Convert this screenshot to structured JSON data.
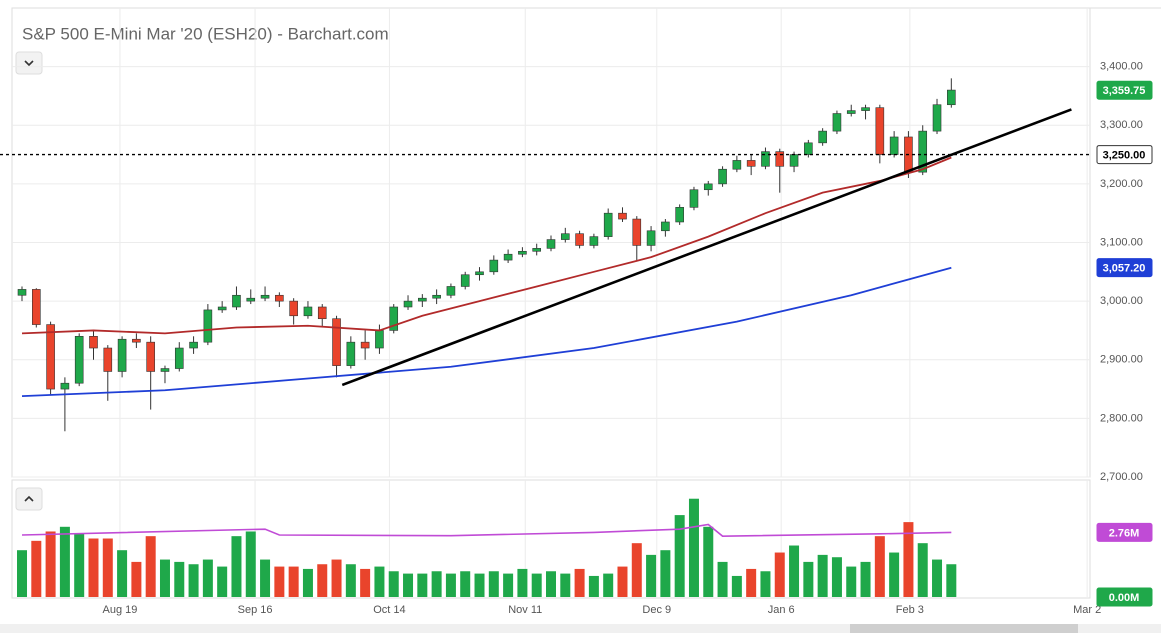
{
  "chart_data": {
    "type": "candlestick",
    "title": "S&P 500 E-Mini Mar '20 (ESH20) - Barchart.com",
    "up_color": "#1fa84a",
    "down_color": "#e9442c",
    "open": [
      3010,
      3020,
      2960,
      2850,
      2860,
      2940,
      2920,
      2880,
      2935,
      2930,
      2880,
      2885,
      2920,
      2930,
      2985,
      2990,
      3000,
      3005,
      3010,
      3000,
      2975,
      2990,
      2970,
      2890,
      2930,
      2920,
      2950,
      2990,
      3000,
      3005,
      3010,
      3025,
      3045,
      3050,
      3070,
      3080,
      3085,
      3090,
      3105,
      3115,
      3095,
      3110,
      3150,
      3140,
      3095,
      3120,
      3135,
      3160,
      3190,
      3200,
      3225,
      3240,
      3230,
      3255,
      3230,
      3250,
      3270,
      3290,
      3320,
      3325,
      3330,
      3250,
      3280,
      3220,
      3290,
      3335
    ],
    "high": [
      3025,
      3022,
      2965,
      2870,
      2945,
      2950,
      2925,
      2940,
      2945,
      2940,
      2890,
      2930,
      2940,
      2995,
      3000,
      3025,
      3020,
      3025,
      3015,
      3005,
      3000,
      2995,
      2975,
      2940,
      2950,
      2960,
      2995,
      3010,
      3012,
      3020,
      3030,
      3050,
      3058,
      3078,
      3088,
      3092,
      3098,
      3112,
      3125,
      3120,
      3115,
      3158,
      3160,
      3145,
      3128,
      3140,
      3165,
      3195,
      3205,
      3230,
      3248,
      3250,
      3262,
      3260,
      3255,
      3275,
      3295,
      3325,
      3335,
      3335,
      3335,
      3290,
      3290,
      3300,
      3345,
      3380
    ],
    "low": [
      3000,
      2955,
      2840,
      2778,
      2855,
      2900,
      2830,
      2870,
      2920,
      2815,
      2860,
      2880,
      2910,
      2925,
      2980,
      2985,
      2995,
      3000,
      2990,
      2960,
      2970,
      2955,
      2870,
      2885,
      2900,
      2910,
      2945,
      2985,
      2990,
      2995,
      3005,
      3020,
      3035,
      3045,
      3065,
      3075,
      3078,
      3085,
      3100,
      3090,
      3090,
      3105,
      3135,
      3070,
      3085,
      3110,
      3130,
      3155,
      3180,
      3195,
      3220,
      3215,
      3225,
      3185,
      3220,
      3245,
      3265,
      3285,
      3315,
      3310,
      3235,
      3245,
      3210,
      3215,
      3285,
      3330
    ],
    "close": [
      3020,
      2960,
      2850,
      2860,
      2940,
      2920,
      2880,
      2935,
      2930,
      2880,
      2885,
      2920,
      2930,
      2985,
      2990,
      3010,
      3005,
      3010,
      3000,
      2975,
      2990,
      2970,
      2890,
      2930,
      2920,
      2950,
      2990,
      3000,
      3005,
      3010,
      3025,
      3045,
      3050,
      3070,
      3080,
      3085,
      3090,
      3105,
      3115,
      3095,
      3110,
      3150,
      3140,
      3095,
      3120,
      3135,
      3160,
      3190,
      3200,
      3225,
      3240,
      3230,
      3255,
      3230,
      3250,
      3270,
      3290,
      3320,
      3325,
      3330,
      3250,
      3280,
      3220,
      3290,
      3335,
      3360
    ],
    "volume": [
      2.0,
      2.4,
      2.8,
      3.0,
      2.7,
      2.5,
      2.5,
      2.0,
      1.5,
      2.6,
      1.6,
      1.5,
      1.4,
      1.6,
      1.3,
      2.6,
      2.8,
      1.6,
      1.3,
      1.3,
      1.2,
      1.4,
      1.6,
      1.4,
      1.2,
      1.3,
      1.1,
      1.0,
      1.0,
      1.1,
      1.0,
      1.1,
      1.0,
      1.1,
      1.0,
      1.2,
      1.0,
      1.1,
      1.0,
      1.2,
      0.9,
      1.0,
      1.3,
      2.3,
      1.8,
      2.0,
      3.5,
      4.2,
      3.0,
      1.5,
      0.9,
      1.2,
      1.1,
      1.9,
      2.2,
      1.5,
      1.8,
      1.7,
      1.3,
      1.5,
      2.6,
      1.9,
      3.2,
      2.3,
      1.6,
      1.4
    ],
    "xlim": [
      -0.7,
      74.7
    ],
    "xticks": [
      {
        "value": 6.85,
        "label": "Aug 19"
      },
      {
        "value": 16.3,
        "label": "Sep 16"
      },
      {
        "value": 25.7,
        "label": "Oct 14"
      },
      {
        "value": 35.2,
        "label": "Nov 11"
      },
      {
        "value": 44.4,
        "label": "Dec 9"
      },
      {
        "value": 53.1,
        "label": "Jan 6"
      },
      {
        "value": 62.1,
        "label": "Feb 3"
      },
      {
        "value": 74.5,
        "label": "Mar 2"
      }
    ],
    "ylim": [
      2700,
      3500
    ],
    "yticks": [
      {
        "value": 2700,
        "label": "2,700.00"
      },
      {
        "value": 2800,
        "label": "2,800.00"
      },
      {
        "value": 2900,
        "label": "2,900.00"
      },
      {
        "value": 3000,
        "label": "3,000.00"
      },
      {
        "value": 3100,
        "label": "3,100.00"
      },
      {
        "value": 3200,
        "label": "3,200.00"
      },
      {
        "value": 3300,
        "label": "3,300.00"
      },
      {
        "value": 3400,
        "label": "3,400.00"
      }
    ],
    "volume_ylim": [
      0,
      5
    ],
    "grid": true,
    "series": [
      {
        "color": "#b22a2a",
        "x": [
          0,
          5,
          10,
          15,
          20,
          25,
          28,
          32,
          36,
          40,
          44,
          48,
          52,
          56,
          60,
          63,
          65
        ],
        "values": [
          2945,
          2950,
          2945,
          2955,
          2958,
          2950,
          2975,
          3000,
          3025,
          3050,
          3075,
          3110,
          3150,
          3185,
          3205,
          3225,
          3245
        ]
      },
      {
        "color": "#1f3fd6",
        "x": [
          0,
          10,
          20,
          30,
          40,
          50,
          58,
          65
        ],
        "values": [
          2838,
          2848,
          2868,
          2888,
          2920,
          2965,
          3010,
          3057
        ]
      }
    ],
    "volume_average": {
      "color": "#c04bd6",
      "x": [
        0,
        17,
        18,
        30,
        40,
        46,
        48,
        49,
        60,
        65
      ],
      "values": [
        2.65,
        2.9,
        2.65,
        2.62,
        2.76,
        2.9,
        3.1,
        2.6,
        2.7,
        2.76
      ]
    },
    "trendline": {
      "color": "#000000",
      "x": [
        22.4,
        73.4
      ],
      "y": [
        2857,
        3327
      ]
    },
    "level": {
      "value": 3250,
      "label": "3,250.00"
    },
    "last_price": {
      "value": 3359.75,
      "label": "3,359.75"
    },
    "ma_last": {
      "value": 3057.2,
      "label": "3,057.20"
    },
    "volume_tags": [
      {
        "value": 2.76,
        "label": "2.76M"
      },
      {
        "value": 0,
        "label": "0.00M"
      }
    ]
  }
}
